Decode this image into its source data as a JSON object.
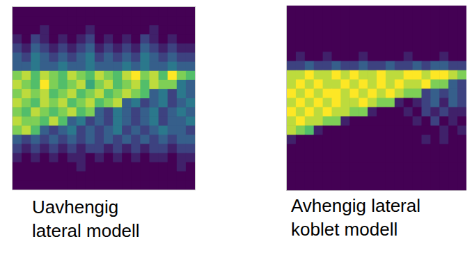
{
  "chart_data": [
    {
      "type": "heatmap",
      "title": "Uavhengig\nlateral modell",
      "tick_labels": false,
      "zlim": [
        0,
        1
      ],
      "cells": [
        [
          0,
          0,
          0,
          0,
          0,
          0,
          0,
          0,
          0,
          0,
          0,
          0,
          0,
          0,
          0,
          0,
          0,
          0,
          0,
          0
        ],
        [
          0,
          0,
          0,
          0,
          0,
          0,
          0,
          0,
          0,
          0,
          0,
          0,
          0,
          0,
          0,
          0,
          0,
          0,
          0,
          0
        ],
        [
          0,
          0,
          0,
          0.1,
          0,
          0,
          0,
          0,
          0.1,
          0,
          0,
          0,
          0,
          0,
          0,
          0.1,
          0,
          0,
          0,
          0
        ],
        [
          0.1,
          0,
          0.2,
          0.1,
          0,
          0.1,
          0,
          0.1,
          0.2,
          0,
          0.1,
          0,
          0.1,
          0,
          0.2,
          0.1,
          0,
          0.1,
          0,
          0
        ],
        [
          0.2,
          0.1,
          0.3,
          0.2,
          0.1,
          0.2,
          0.1,
          0.2,
          0.3,
          0.1,
          0.2,
          0.1,
          0.2,
          0.1,
          0.3,
          0.2,
          0.1,
          0.2,
          0.1,
          0.1
        ],
        [
          0.3,
          0.2,
          0.4,
          0.3,
          0.2,
          0.3,
          0.2,
          0.3,
          0.4,
          0.2,
          0.3,
          0.2,
          0.3,
          0.2,
          0.4,
          0.3,
          0.2,
          0.3,
          0.2,
          0.2
        ],
        [
          0.3,
          0.3,
          0.4,
          0.3,
          0.3,
          0.4,
          0.3,
          0.3,
          0.4,
          0.3,
          0.3,
          0.3,
          0.4,
          0.3,
          0.4,
          0.3,
          0.3,
          0.4,
          0.3,
          0.3
        ],
        [
          0.8,
          0.9,
          0.7,
          0.9,
          0.8,
          0.7,
          0.9,
          0.8,
          0.7,
          0.9,
          0.8,
          0.7,
          0.9,
          1.0,
          0.8,
          0.9,
          0.7,
          1.0,
          0.8,
          0.7
        ],
        [
          0.9,
          0.8,
          0.7,
          1.0,
          0.8,
          0.7,
          0.8,
          0.9,
          0.6,
          0.8,
          0.9,
          0.7,
          0.8,
          0.9,
          0.7,
          0.9,
          0.8,
          0.8,
          0.4,
          0.3
        ],
        [
          0.8,
          0.9,
          0.8,
          0.9,
          0.7,
          0.8,
          0.9,
          0.7,
          0.8,
          0.9,
          0.7,
          0.8,
          0.9,
          0.8,
          0.7,
          0.3,
          0.4,
          0.2,
          0.4,
          0.3
        ],
        [
          0.9,
          0.8,
          0.7,
          0.9,
          0.8,
          0.9,
          0.7,
          0.8,
          0.9,
          0.7,
          0.8,
          0.9,
          0.3,
          0.4,
          0.2,
          0.3,
          0.4,
          0.2,
          0.3,
          0.4
        ],
        [
          0.8,
          0.7,
          0.9,
          0.8,
          0.7,
          0.8,
          0.9,
          0.7,
          0.8,
          0.3,
          0.2,
          0.4,
          0.3,
          0.2,
          0.3,
          0.4,
          0.2,
          0.3,
          0.4,
          0.3
        ],
        [
          0.9,
          0.8,
          0.8,
          0.7,
          0.9,
          0.7,
          0.3,
          0.4,
          0.2,
          0.3,
          0.2,
          0.4,
          0.3,
          0.2,
          0.3,
          0.4,
          0.2,
          0.3,
          0.3,
          0.4
        ],
        [
          0.8,
          0.9,
          0.7,
          0.3,
          0.2,
          0.3,
          0.4,
          0.2,
          0.3,
          0.2,
          0.3,
          0.4,
          0.2,
          0.3,
          0.2,
          0.3,
          0.4,
          0.3,
          0.3,
          0.2
        ],
        [
          0.3,
          0.2,
          0.3,
          0.2,
          0.3,
          0.2,
          0.3,
          0.2,
          0.3,
          0.2,
          0.3,
          0.2,
          0.3,
          0.2,
          0.3,
          0.2,
          0.3,
          0.2,
          0.3,
          0.3
        ],
        [
          0.2,
          0.1,
          0.2,
          0.1,
          0.2,
          0.1,
          0.2,
          0.1,
          0.2,
          0.2,
          0.1,
          0.2,
          0.1,
          0.2,
          0.1,
          0.2,
          0.2,
          0.1,
          0.2,
          0.2
        ],
        [
          0.1,
          0,
          0.1,
          0,
          0.1,
          0,
          0.1,
          0.1,
          0,
          0.1,
          0,
          0.1,
          0,
          0.1,
          0,
          0.1,
          0.1,
          0,
          0.1,
          0.1
        ],
        [
          0,
          0,
          0,
          0,
          0,
          0,
          0,
          0.1,
          0,
          0,
          0,
          0,
          0,
          0,
          0,
          0,
          0,
          0,
          0.1,
          0
        ],
        [
          0,
          0,
          0,
          0,
          0,
          0,
          0,
          0,
          0,
          0,
          0,
          0,
          0,
          0,
          0,
          0,
          0,
          0,
          0,
          0
        ],
        [
          0,
          0,
          0,
          0,
          0,
          0,
          0,
          0,
          0,
          0,
          0,
          0,
          0,
          0,
          0,
          0,
          0,
          0,
          0,
          0
        ]
      ]
    },
    {
      "type": "heatmap",
      "title": "Avhengig lateral\nkoblet modell",
      "tick_labels": false,
      "zlim": [
        0,
        1
      ],
      "cells": [
        [
          0,
          0,
          0,
          0,
          0,
          0,
          0,
          0,
          0,
          0,
          0,
          0,
          0,
          0,
          0,
          0,
          0,
          0,
          0,
          0
        ],
        [
          0,
          0,
          0,
          0,
          0,
          0,
          0,
          0,
          0,
          0,
          0,
          0,
          0,
          0,
          0,
          0,
          0,
          0,
          0,
          0
        ],
        [
          0,
          0,
          0,
          0,
          0,
          0,
          0,
          0,
          0,
          0,
          0,
          0,
          0,
          0,
          0,
          0,
          0,
          0,
          0,
          0
        ],
        [
          0,
          0,
          0,
          0,
          0,
          0,
          0,
          0,
          0,
          0,
          0,
          0,
          0,
          0,
          0,
          0,
          0,
          0,
          0,
          0
        ],
        [
          0,
          0,
          0,
          0,
          0,
          0,
          0,
          0,
          0,
          0,
          0,
          0,
          0,
          0,
          0,
          0,
          0,
          0,
          0,
          0
        ],
        [
          0,
          0.1,
          0,
          0,
          0.1,
          0,
          0,
          0,
          0.1,
          0,
          0,
          0,
          0,
          0.1,
          0,
          0,
          0,
          0.1,
          0,
          0
        ],
        [
          0.2,
          0.2,
          0.3,
          0.2,
          0.2,
          0.3,
          0.2,
          0.2,
          0.3,
          0.2,
          0.2,
          0.3,
          0.2,
          0.2,
          0.3,
          0.2,
          0.3,
          0.3,
          0.2,
          0.2
        ],
        [
          0.9,
          0.9,
          1.0,
          0.9,
          0.9,
          1.0,
          0.9,
          1.0,
          0.9,
          0.9,
          1.0,
          0.9,
          0.9,
          1.0,
          1.0,
          0.9,
          1.0,
          1.0,
          0.9,
          0.8
        ],
        [
          0.9,
          1.0,
          0.9,
          1.0,
          0.9,
          0.9,
          1.0,
          0.9,
          1.0,
          0.9,
          1.0,
          0.9,
          1.0,
          0.9,
          0.9,
          1.0,
          0.8,
          0.8,
          0.3,
          0.2
        ],
        [
          1.0,
          0.9,
          1.0,
          0.9,
          1.0,
          1.0,
          0.9,
          1.0,
          0.9,
          1.0,
          0.9,
          1.0,
          0.9,
          0.8,
          0.8,
          0.2,
          0.3,
          0.2,
          0.3,
          0.2
        ],
        [
          0.9,
          1.0,
          0.9,
          1.0,
          0.9,
          1.0,
          0.9,
          0.9,
          1.0,
          0.9,
          0.8,
          0.8,
          0.1,
          0,
          0.1,
          0.2,
          0.3,
          0.1,
          0.3,
          0.2
        ],
        [
          1.0,
          0.9,
          1.0,
          0.9,
          1.0,
          0.9,
          0.9,
          0.8,
          0.8,
          0.1,
          0,
          0,
          0,
          0.1,
          0,
          0.2,
          0.1,
          0.2,
          0.1,
          0.1
        ],
        [
          0.9,
          1.0,
          0.9,
          0.9,
          0.8,
          0.8,
          0.1,
          0,
          0,
          0,
          0,
          0,
          0,
          0,
          0.1,
          0,
          0.2,
          0,
          0.1,
          0
        ],
        [
          0.9,
          0.8,
          0.7,
          0.1,
          0,
          0,
          0,
          0,
          0,
          0,
          0,
          0,
          0,
          0,
          0,
          0,
          0,
          0.1,
          0,
          0.1
        ],
        [
          0.1,
          0,
          0,
          0,
          0,
          0,
          0,
          0,
          0,
          0,
          0,
          0,
          0,
          0,
          0,
          0.1,
          0,
          0.1,
          0,
          0
        ],
        [
          0,
          0,
          0,
          0,
          0,
          0,
          0,
          0,
          0,
          0,
          0,
          0,
          0,
          0,
          0,
          0,
          0,
          0,
          0,
          0
        ],
        [
          0,
          0,
          0,
          0,
          0,
          0,
          0,
          0,
          0,
          0,
          0,
          0,
          0,
          0,
          0,
          0,
          0,
          0,
          0,
          0
        ],
        [
          0,
          0,
          0,
          0,
          0,
          0,
          0,
          0,
          0,
          0,
          0,
          0,
          0,
          0,
          0,
          0,
          0,
          0,
          0,
          0
        ],
        [
          0,
          0,
          0,
          0,
          0,
          0,
          0,
          0,
          0,
          0,
          0,
          0,
          0,
          0,
          0,
          0,
          0,
          0,
          0,
          0
        ],
        [
          0,
          0,
          0,
          0,
          0,
          0,
          0,
          0,
          0,
          0,
          0,
          0,
          0,
          0,
          0,
          0,
          0,
          0,
          0,
          0
        ]
      ]
    }
  ]
}
